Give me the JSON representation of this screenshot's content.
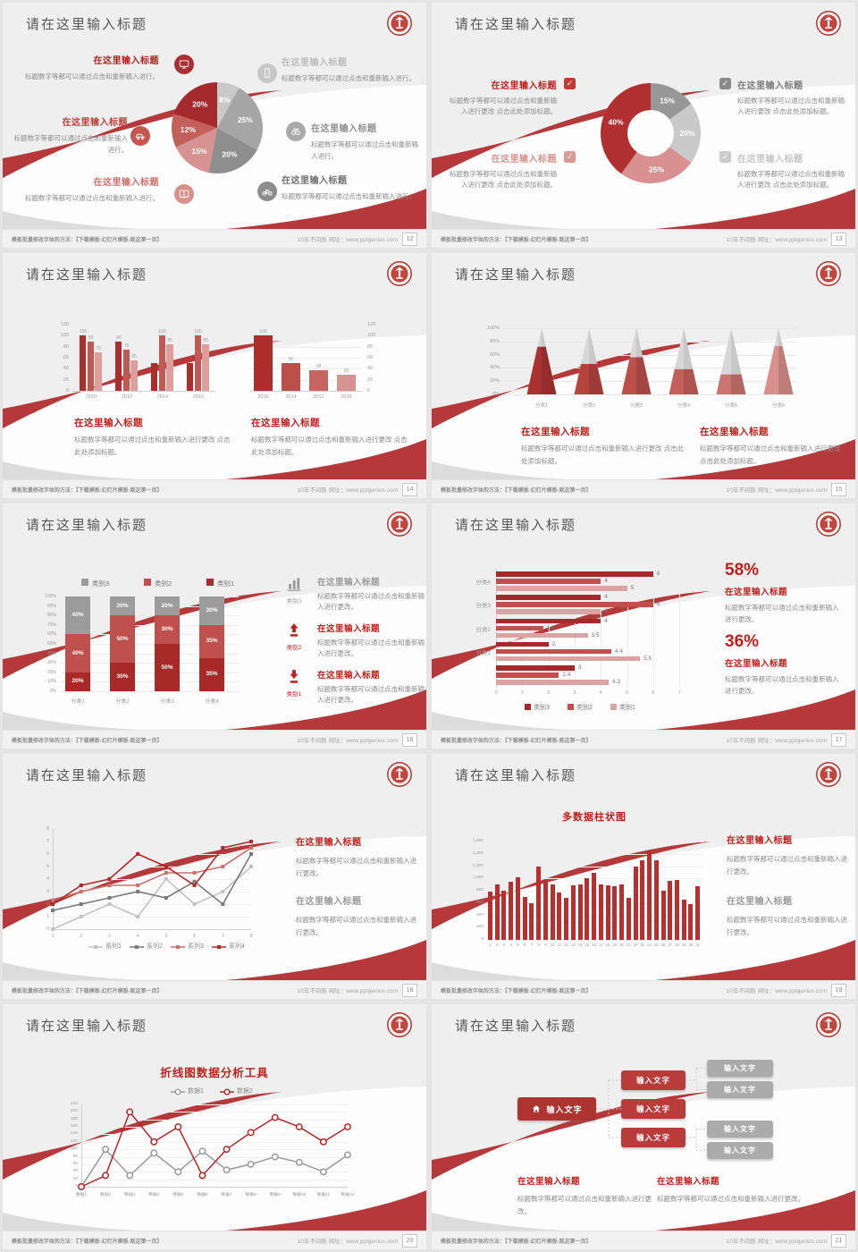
{
  "common": {
    "slide_title": "请在这里输入标题",
    "block_title": "在这里输入标题",
    "body_short": "标题数字等都可以通过点击和重新输入进行。",
    "body_mid": "标题数字等都可以通过点击和重新输入进行更改。",
    "body_add": "标题数字等都可以通过点击和重新输入进行更改 点击此处添加标题。",
    "node_text": "输入文字"
  },
  "footer": {
    "left": "模板批量修改字体的方法：【下载模板-幻灯片模板-就这第一页】",
    "right": "10年不间断 网址：www.pptgenius.com"
  },
  "colors": {
    "accent_red": "#b5393a",
    "heading_red": "#c0201c",
    "dark_red": "#a42a2e",
    "mid_red": "#c0504d",
    "light_red": "#d89090",
    "gray_dark": "#8e8e8e",
    "gray_mid": "#a6a6a6",
    "gray_light": "#c9c9c9",
    "title_text": "#565656",
    "body_text": "#8b8b8b"
  },
  "slides": [
    {
      "page": "12",
      "type": "pie-features",
      "chart": 0,
      "left": [
        {
          "icon": "monitor-icon",
          "circle": "#ab2f34",
          "title_color": "#b6201e"
        },
        {
          "icon": "car-icon",
          "circle": "#c4564f",
          "title_color": "#c43d39"
        },
        {
          "icon": "book-icon",
          "circle": "#d8908b",
          "title_color": "#d0706c"
        }
      ],
      "right": [
        {
          "icon": "phone-icon",
          "circle": "#c7c7c7",
          "title_color": "#bcbcbc"
        },
        {
          "icon": "binoculars-icon",
          "circle": "#a9a9a9",
          "title_color": "#8f8f8f"
        },
        {
          "icon": "bicycle-icon",
          "circle": "#8d8d8d",
          "title_color": "#6f6f6f"
        }
      ]
    },
    {
      "page": "13",
      "type": "donut-checks",
      "chart": 1,
      "left": [
        {
          "title_color": "#c0201c",
          "box": "#bf3a31"
        },
        {
          "title_color": "#d9938f",
          "box": "#d99a95"
        }
      ],
      "right": [
        {
          "title_color": "#7d7d7d",
          "box": "#8b8b8b"
        },
        {
          "title_color": "#c6c6c6",
          "box": "#cbcbcb"
        }
      ]
    },
    {
      "page": "14",
      "type": "dual-bars",
      "chartA": 2,
      "chartB": 3
    },
    {
      "page": "15",
      "type": "pyramids",
      "chart": 4
    },
    {
      "page": "16",
      "type": "stacked-features",
      "chart": 5,
      "features": [
        {
          "icon": "bar-chart-icon",
          "icon_color": "#9a9a9a",
          "label": "类别3",
          "title_color": "#9a9a9a"
        },
        {
          "icon": "arrow-up-icon",
          "icon_color": "#c0201c",
          "label": "类别2",
          "title_color": "#c0201c"
        },
        {
          "icon": "arrow-down-icon",
          "icon_color": "#c0201c",
          "label": "类别1",
          "title_color": "#c0201c"
        }
      ]
    },
    {
      "page": "17",
      "type": "hbar-stats",
      "chart": 6,
      "stats": [
        {
          "value": "58%"
        },
        {
          "value": "36%"
        }
      ]
    },
    {
      "page": "18",
      "type": "line-text",
      "chart": 7,
      "blocks": [
        {
          "title_color": "#c0201c"
        },
        {
          "title_color": "#9b9b9b"
        }
      ]
    },
    {
      "page": "19",
      "type": "columns-text",
      "chart": 8,
      "blocks": [
        {
          "title_color": "#c0201c"
        },
        {
          "title_color": "#9b9b9b"
        }
      ]
    },
    {
      "page": "20",
      "type": "line-title",
      "chart": 9
    },
    {
      "page": "21",
      "type": "tree",
      "tree": {
        "root": "输入文字",
        "mids": [
          "输入文字",
          "输入文字",
          "输入文字"
        ],
        "leaves": [
          "输入文字",
          "输入文字",
          "输入文字",
          "输入文字"
        ]
      }
    }
  ],
  "chart_data": [
    {
      "type": "pie",
      "values": [
        8,
        25,
        20,
        15,
        12,
        20
      ],
      "labels": [
        "8%",
        "25%",
        "20%",
        "15%",
        "12%",
        "20%"
      ],
      "colors": [
        "#c9c9c9",
        "#a6a6a6",
        "#8e8e8e",
        "#d79391",
        "#c4605c",
        "#a42a2e"
      ]
    },
    {
      "type": "donut",
      "values": [
        15,
        20,
        25,
        40
      ],
      "labels": [
        "15%",
        "20%",
        "25%",
        "40%"
      ],
      "colors": [
        "#979797",
        "#c9c9c9",
        "#d89090",
        "#b02f31"
      ]
    },
    {
      "type": "bar",
      "variant": "grouped",
      "categories": [
        "2010",
        "2012",
        "2014",
        "2016"
      ],
      "ylim": [
        0,
        120
      ],
      "yticks": [
        "120",
        "100",
        "80",
        "60",
        "40",
        "20",
        "0"
      ],
      "series": [
        {
          "color": "#a7302d",
          "values": [
            100,
            90,
            50,
            50
          ],
          "labels": [
            "100",
            "90",
            null,
            null
          ]
        },
        {
          "color": "#c05a55",
          "values": [
            90,
            75,
            100,
            100
          ],
          "labels": [
            "90",
            "75",
            "100",
            "100"
          ]
        },
        {
          "color": "#dd9f9c",
          "values": [
            70,
            55,
            85,
            85
          ],
          "labels": [
            "70",
            "55",
            "85",
            "85"
          ]
        }
      ]
    },
    {
      "type": "bar",
      "categories": [
        "2016",
        "2014",
        "2012",
        "2010"
      ],
      "values": [
        100,
        50,
        38,
        30
      ],
      "labels": [
        "100",
        "50",
        "38",
        "30"
      ],
      "colors": [
        "#ad2d2d",
        "#bd4f4a",
        "#c66560",
        "#d69390"
      ],
      "ylim": [
        0,
        120
      ],
      "yticks": [
        "120",
        "100",
        "80",
        "60",
        "40",
        "20",
        "0"
      ]
    },
    {
      "type": "pyramid",
      "categories": [
        "分类1",
        "分类2",
        "分类3",
        "分类4",
        "分类5",
        "分类6"
      ],
      "fill_percent": [
        72,
        46,
        56,
        38,
        30,
        73
      ],
      "colors": [
        "#a93331",
        "#b5443f",
        "#bc4f4a",
        "#c4605b",
        "#cc7470",
        "#d8908d"
      ],
      "yticks": [
        "100%",
        "80%",
        "60%",
        "40%",
        "20%",
        "0%"
      ]
    },
    {
      "type": "stacked-bar",
      "categories": [
        "分类1",
        "分类2",
        "分类3",
        "分类4"
      ],
      "legend": [
        "类别3",
        "类别2",
        "类别1"
      ],
      "legend_colors": [
        "#9c9c9c",
        "#c0504d",
        "#a72a28"
      ],
      "series": [
        {
          "name": "类别1",
          "color": "#a72a28",
          "values": [
            20,
            30,
            50,
            35
          ]
        },
        {
          "name": "类别2",
          "color": "#c0504d",
          "values": [
            40,
            50,
            30,
            35
          ]
        },
        {
          "name": "类别3",
          "color": "#9c9c9c",
          "values": [
            40,
            20,
            20,
            30
          ]
        }
      ],
      "yticks": [
        "100%",
        "90%",
        "80%",
        "70%",
        "60%",
        "50%",
        "40%",
        "30%",
        "20%",
        "10%",
        "0%"
      ]
    },
    {
      "type": "hbar",
      "xlim": [
        0,
        7
      ],
      "xticks": [
        "0",
        "1",
        "2",
        "3",
        "4",
        "5",
        "6",
        "7"
      ],
      "legend": [
        "类别3",
        "类别2",
        "类别1"
      ],
      "legend_colors": [
        "#a5282a",
        "#c0504d",
        "#dba4a2"
      ],
      "groups": [
        {
          "label": "分类4",
          "values": [
            6,
            4,
            5
          ]
        },
        {
          "label": "分类3",
          "values": [
            4,
            6,
            4
          ]
        },
        {
          "label": "分类2",
          "values": [
            4,
            1.8,
            3.5
          ]
        },
        {
          "label": "分类1",
          "values": [
            2,
            4.4,
            5.5
          ]
        },
        {
          "label": "",
          "values": [
            3,
            2.4,
            4.3
          ]
        }
      ]
    },
    {
      "type": "line",
      "x": [
        "1",
        "2",
        "3",
        "4",
        "5",
        "6",
        "7",
        "8"
      ],
      "ylim": [
        0,
        8
      ],
      "yticks": [
        "8",
        "7",
        "6",
        "5",
        "4",
        "3",
        "2",
        "1",
        "0"
      ],
      "series": [
        {
          "name": "系列1",
          "color": "#c2c2c2",
          "values": [
            0,
            1,
            2,
            1,
            4,
            2,
            3,
            5
          ]
        },
        {
          "name": "系列2",
          "color": "#7a7a7a",
          "values": [
            1.5,
            2,
            2.5,
            3,
            2.5,
            3.8,
            2,
            6
          ]
        },
        {
          "name": "系列3",
          "color": "#c9716c",
          "values": [
            2.3,
            3,
            3.5,
            3.5,
            4.5,
            4.5,
            5,
            6.5
          ]
        },
        {
          "name": "系列4",
          "color": "#ae2a2b",
          "values": [
            2,
            3.5,
            4,
            6,
            5,
            3.5,
            6.5,
            7
          ]
        }
      ]
    },
    {
      "type": "bar",
      "title": "多数据柱状图",
      "categories": [
        "1",
        "2",
        "3",
        "4",
        "5",
        "6",
        "7",
        "8",
        "9",
        "10",
        "11",
        "12",
        "13",
        "14",
        "15",
        "16",
        "17",
        "18",
        "19",
        "20",
        "21",
        "22",
        "23",
        "24",
        "25",
        "26",
        "27",
        "28",
        "29",
        "30",
        "31"
      ],
      "values": [
        780,
        900,
        800,
        950,
        1020,
        700,
        600,
        1190,
        980,
        900,
        770,
        690,
        890,
        900,
        1000,
        1090,
        900,
        890,
        880,
        900,
        690,
        1190,
        1300,
        1450,
        1290,
        800,
        960,
        970,
        660,
        580,
        870
      ],
      "color": "#b5302f",
      "ylim": [
        0,
        1600
      ],
      "yticks": [
        "1,600",
        "1,400",
        "1,200",
        "1,000",
        "800",
        "600",
        "400",
        "200",
        "0"
      ]
    },
    {
      "type": "line",
      "title": "折线图数据分析工具",
      "categories": [
        "数据1",
        "数据2",
        "数据3",
        "数据4",
        "数据5",
        "数据6",
        "数据7",
        "数据8",
        "数据9",
        "数据10",
        "数据11",
        "数据12"
      ],
      "ylim": [
        0,
        220
      ],
      "yticks": [
        "220",
        "200",
        "180",
        "160",
        "140",
        "120",
        "100",
        "80",
        "60",
        "40",
        "20",
        "0"
      ],
      "series": [
        {
          "name": "数据1",
          "color": "#9a9a9a",
          "values": [
            0,
            100,
            30,
            90,
            40,
            95,
            45,
            60,
            80,
            65,
            40,
            85
          ]
        },
        {
          "name": "数据2",
          "color": "#b3282a",
          "values": [
            0,
            30,
            200,
            120,
            160,
            30,
            100,
            145,
            185,
            160,
            120,
            160
          ]
        }
      ]
    }
  ]
}
